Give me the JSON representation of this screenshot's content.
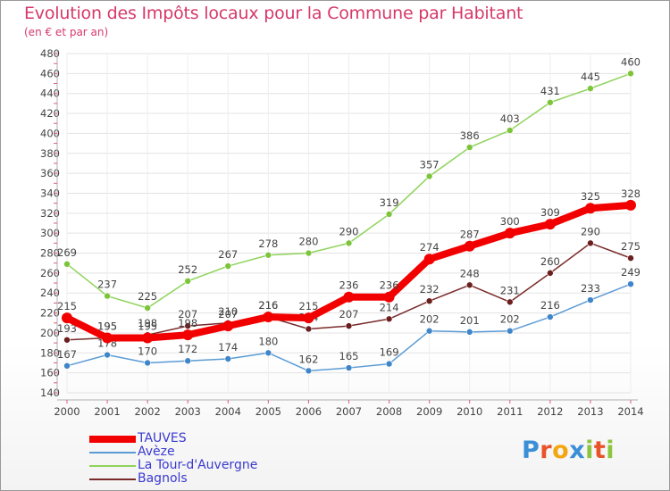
{
  "title": "Evolution des Impôts locaux pour la Commune par Habitant",
  "subtitle": "(en € et par an)",
  "logo": {
    "letters": [
      {
        "ch": "P",
        "color": "#3b8fd6"
      },
      {
        "ch": "r",
        "color": "#e8532a"
      },
      {
        "ch": "o",
        "color": "#f2a712"
      },
      {
        "ch": "x",
        "color": "#3b8fd6"
      },
      {
        "ch": "i",
        "color": "#8cc63f"
      },
      {
        "ch": "t",
        "color": "#e8532a"
      },
      {
        "ch": "i",
        "color": "#8cc63f"
      }
    ]
  },
  "chart_data": {
    "type": "line",
    "title": "Evolution des Impôts locaux pour la Commune par Habitant",
    "subtitle": "(en € et par an)",
    "categories": [
      "2000",
      "2001",
      "2002",
      "2003",
      "2004",
      "2005",
      "2006",
      "2007",
      "2008",
      "2009",
      "2010",
      "2011",
      "2012",
      "2013",
      "2014"
    ],
    "ylim": [
      140,
      480
    ],
    "yticks": [
      140,
      160,
      180,
      200,
      220,
      240,
      260,
      280,
      300,
      320,
      340,
      360,
      380,
      400,
      420,
      440,
      460,
      480
    ],
    "grid": true,
    "legend_position": "bottom-left",
    "series": [
      {
        "name": "La Tour-d'Auvergne",
        "color": "#8fd35a",
        "point_color": "#7cc43a",
        "values": [
          269,
          237,
          225,
          252,
          267,
          278,
          280,
          290,
          319,
          357,
          386,
          403,
          431,
          445,
          460
        ]
      },
      {
        "name": "Bagnols",
        "color": "#7a2a2a",
        "point_color": "#6b1e1e",
        "values": [
          193,
          195,
          198,
          207,
          210,
          216,
          204,
          207,
          214,
          232,
          248,
          231,
          260,
          290,
          275
        ]
      },
      {
        "name": "Avèze",
        "color": "#5b9bd5",
        "point_color": "#3f86c8",
        "values": [
          167,
          178,
          170,
          172,
          174,
          180,
          162,
          165,
          169,
          202,
          201,
          202,
          216,
          233,
          249
        ]
      },
      {
        "name": "TAUVES",
        "color": "#f20000",
        "point_color": "#f20000",
        "bold": true,
        "values": [
          215,
          195,
          195,
          198,
          207,
          216,
          215,
          236,
          236,
          274,
          287,
          300,
          309,
          325,
          328
        ]
      }
    ],
    "legend_order": [
      "TAUVES",
      "Avèze",
      "La Tour-d'Auvergne",
      "Bagnols"
    ]
  }
}
